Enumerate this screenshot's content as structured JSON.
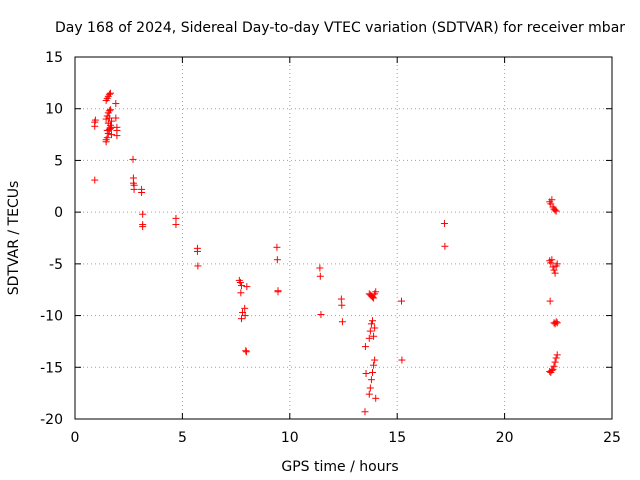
{
  "chart_data": {
    "type": "scatter",
    "title": "Day 168 of 2024, Sidereal Day-to-day VTEC variation (SDTVAR) for receiver mbar",
    "xlabel": "GPS time / hours",
    "ylabel": "SDTVAR / TECUs",
    "xlim": [
      0,
      25
    ],
    "ylim": [
      -20,
      15
    ],
    "xticks": [
      0,
      5,
      10,
      15,
      20,
      25
    ],
    "yticks": [
      -20,
      -15,
      -10,
      -5,
      0,
      5,
      10,
      15
    ],
    "xtick_labels": [
      "0",
      "5",
      "10",
      "15",
      "20",
      "25"
    ],
    "ytick_labels": [
      "-20",
      "-15",
      "-10",
      "-5",
      "0",
      "5",
      "10",
      "15"
    ],
    "grid": true,
    "marker": "+",
    "series": [
      {
        "name": "SDTVAR",
        "color": "#ff0000",
        "x": [
          0.92,
          0.92,
          0.92,
          0.95,
          1.45,
          1.5,
          1.55,
          1.6,
          1.65,
          1.7,
          1.45,
          1.5,
          1.55,
          1.6,
          1.65,
          1.7,
          1.45,
          1.5,
          1.55,
          1.6,
          1.65,
          1.45,
          1.5,
          1.55,
          1.6,
          1.65,
          1.7,
          1.9,
          1.9,
          1.95,
          1.95,
          1.95,
          2.7,
          2.72,
          2.72,
          2.75,
          2.75,
          3.1,
          3.1,
          3.15,
          3.15,
          3.15,
          4.7,
          4.7,
          5.7,
          5.7,
          5.72,
          7.65,
          7.7,
          7.72,
          7.75,
          7.75,
          7.8,
          7.9,
          7.92,
          7.95,
          7.98,
          8.0,
          9.4,
          9.42,
          9.45,
          9.45,
          11.4,
          11.42,
          11.45,
          12.4,
          12.42,
          12.45,
          13.5,
          13.52,
          13.55,
          13.7,
          13.75,
          13.8,
          13.85,
          13.9,
          13.95,
          14.0,
          13.7,
          13.75,
          13.8,
          13.85,
          13.9,
          13.95,
          13.7,
          13.75,
          13.8,
          13.85,
          13.9,
          13.95,
          14.0,
          15.2,
          15.22,
          17.2,
          17.22,
          22.1,
          22.15,
          22.2,
          22.25,
          22.3,
          22.35,
          22.4,
          22.1,
          22.15,
          22.2,
          22.25,
          22.3,
          22.35,
          22.4,
          22.45,
          22.12,
          22.3,
          22.35,
          22.4,
          22.45,
          22.1,
          22.15,
          22.2,
          22.25,
          22.3,
          22.35,
          22.4,
          22.45
        ],
        "y": [
          3.1,
          8.3,
          8.7,
          8.9,
          6.8,
          7.2,
          7.6,
          8.0,
          8.4,
          8.8,
          9.0,
          9.3,
          9.6,
          9.8,
          8.1,
          7.5,
          10.8,
          11.0,
          11.2,
          11.4,
          11.5,
          7.0,
          7.9,
          8.6,
          9.1,
          9.9,
          8.2,
          10.5,
          9.1,
          8.2,
          7.9,
          7.4,
          5.1,
          3.3,
          2.8,
          2.6,
          2.2,
          2.2,
          1.9,
          -0.2,
          -1.2,
          -1.4,
          -0.6,
          -1.2,
          -3.5,
          -3.8,
          -5.2,
          -6.6,
          -6.8,
          -7.8,
          -10.3,
          -7.1,
          -9.7,
          -9.3,
          -10.0,
          -13.4,
          -13.5,
          -7.2,
          -3.4,
          -4.6,
          -7.6,
          -7.7,
          -5.4,
          -6.2,
          -9.9,
          -8.4,
          -9.0,
          -10.6,
          -19.3,
          -13.0,
          -15.6,
          -7.9,
          -8.0,
          -8.1,
          -8.2,
          -8.3,
          -7.9,
          -7.7,
          -17.6,
          -17.0,
          -16.2,
          -15.5,
          -14.8,
          -14.3,
          -12.2,
          -11.5,
          -10.8,
          -10.5,
          -12.0,
          -11.2,
          -18.0,
          -8.6,
          -14.3,
          -1.1,
          -3.3,
          1.0,
          0.8,
          1.2,
          0.5,
          0.3,
          0.2,
          0.1,
          -4.7,
          -4.9,
          -4.6,
          -5.3,
          -5.6,
          -5.9,
          -5.2,
          -5.0,
          -8.6,
          -10.7,
          -10.8,
          -10.6,
          -10.7,
          -15.4,
          -15.5,
          -15.3,
          -15.2,
          -14.9,
          -14.5,
          -14.1,
          -13.8
        ]
      }
    ]
  }
}
